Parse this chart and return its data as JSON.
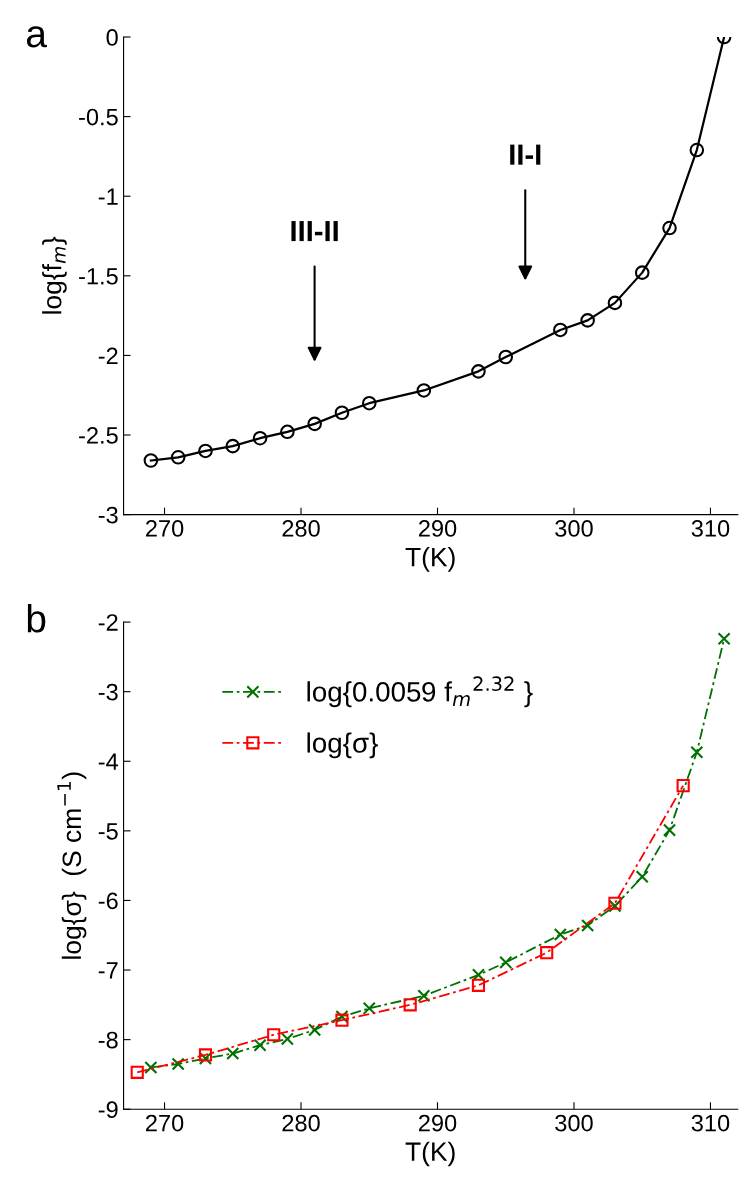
{
  "chart_data": [
    {
      "type": "line",
      "title": "a",
      "xlabel": "T(K)",
      "ylabel": "log{f$_{m}$}",
      "marker": "circle",
      "line_style": "solid",
      "x": [
        269,
        271,
        273,
        275,
        277,
        279,
        281,
        283,
        285,
        289,
        293,
        295,
        299,
        301,
        303,
        305,
        307,
        309,
        311
      ],
      "series": [
        {
          "color": "#000000",
          "values": [
            -2.66,
            -2.64,
            -2.6,
            -2.57,
            -2.52,
            -2.48,
            -2.43,
            -2.36,
            -2.3,
            -2.22,
            -2.1,
            -2.01,
            -1.84,
            -1.78,
            -1.67,
            -1.48,
            -1.2,
            -0.71,
            0
          ]
        }
      ],
      "xlim": [
        267,
        312
      ],
      "ylim": [
        -3,
        0
      ],
      "xticks": [
        270,
        280,
        290,
        300,
        310
      ],
      "yticks": [
        -3,
        -2.5,
        -2,
        -1.5,
        -1,
        -0.5,
        0
      ],
      "annotations": [
        "III-II",
        "II-I"
      ],
      "grid": false,
      "legend": false
    },
    {
      "type": "line",
      "title": "b",
      "xlabel": "T(K)",
      "ylabel": "log{σ}  (S cm$^{−1}$)",
      "line_style": "dashed",
      "legend": "top left",
      "grid": false,
      "series": [
        {
          "name": "log{0.0059 f$_{m}$$^{2.32}$ }",
          "color": "#007000",
          "marker": "cross",
          "x": [
            269,
            271,
            273,
            275,
            277,
            279,
            281,
            283,
            285,
            289,
            293,
            295,
            299,
            301,
            303,
            305,
            307,
            309,
            311
          ],
          "values": [
            -8.4,
            -8.35,
            -8.27,
            -8.2,
            -8.08,
            -7.99,
            -7.86,
            -7.67,
            -7.55,
            -7.37,
            -7.07,
            -6.89,
            -6.49,
            -6.36,
            -6.08,
            -5.66,
            -4.99,
            -3.87,
            -2.24
          ]
        },
        {
          "name": "log{σ}",
          "color": "#ff0000",
          "marker": "square",
          "x": [
            268,
            273,
            278,
            283,
            288,
            293,
            298,
            303,
            308
          ],
          "values": [
            -8.47,
            -8.22,
            -7.93,
            -7.72,
            -7.5,
            -7.22,
            -6.75,
            -6.04,
            -4.35
          ]
        }
      ],
      "xlim": [
        267,
        312
      ],
      "ylim": [
        -9,
        -2
      ],
      "xticks": [
        270,
        280,
        290,
        300,
        310
      ],
      "yticks": [
        -9,
        -8,
        -7,
        -6,
        -5,
        -4,
        -3,
        -2
      ]
    }
  ]
}
